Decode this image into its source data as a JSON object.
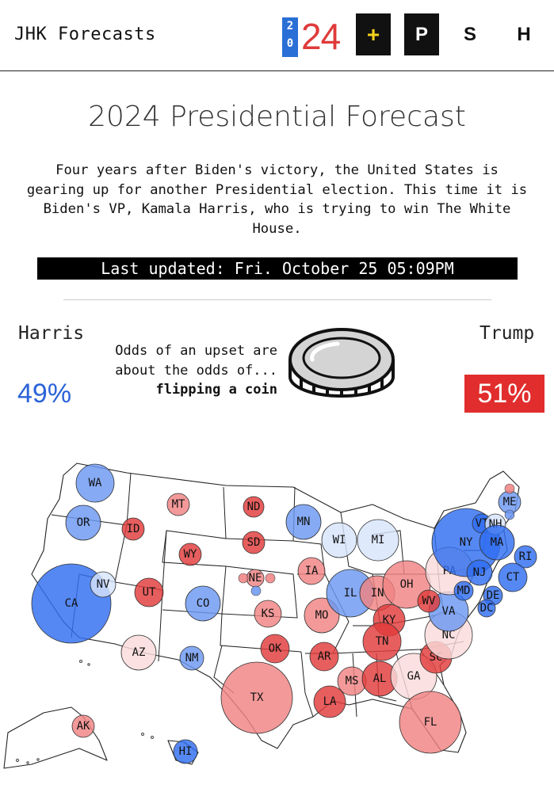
{
  "header": {
    "brand": "JHK Forecasts",
    "logo_small_digits": [
      "2",
      "0"
    ],
    "logo_big": "24",
    "nav": [
      {
        "label": "+",
        "style": "dark-plus"
      },
      {
        "label": "P",
        "style": "dark"
      },
      {
        "label": "S",
        "style": "plain"
      },
      {
        "label": "H",
        "style": "plain"
      }
    ]
  },
  "title": "2024 Presidential Forecast",
  "intro_lines": [
    "Four years after Biden's victory, the United States is",
    "gearing up for another Presidential election. This time it is",
    "Biden's VP, Kamala Harris, who is trying to win The White",
    "House."
  ],
  "last_updated": "Last updated: Fri. October 25 05:09PM",
  "candidates": {
    "harris": {
      "name": "Harris",
      "pct": "49%",
      "color": "#2b63d8"
    },
    "trump": {
      "name": "Trump",
      "pct": "51%",
      "color": "#e12d2d"
    }
  },
  "odds": {
    "line1": "Odds of an upset are",
    "line2": "about the odds of...",
    "line3": "flipping a coin",
    "icon": "coin-icon"
  },
  "map": {
    "colors": {
      "solid_blue": "#2f6ef0",
      "likely_blue": "#6b97f2",
      "lean_blue": "#d7e4fb",
      "solid_red": "#e23a3a",
      "likely_red": "#f08282",
      "lean_red": "#fadadb"
    },
    "states": [
      {
        "code": "WA",
        "party": "likely_blue"
      },
      {
        "code": "OR",
        "party": "likely_blue"
      },
      {
        "code": "CA",
        "party": "solid_blue"
      },
      {
        "code": "NV",
        "party": "lean_blue"
      },
      {
        "code": "ID",
        "party": "solid_red"
      },
      {
        "code": "MT",
        "party": "likely_red"
      },
      {
        "code": "WY",
        "party": "solid_red"
      },
      {
        "code": "UT",
        "party": "solid_red"
      },
      {
        "code": "AZ",
        "party": "lean_red"
      },
      {
        "code": "CO",
        "party": "likely_blue"
      },
      {
        "code": "NM",
        "party": "likely_blue"
      },
      {
        "code": "ND",
        "party": "solid_red"
      },
      {
        "code": "SD",
        "party": "solid_red"
      },
      {
        "code": "NE",
        "party": "likely_red"
      },
      {
        "code": "KS",
        "party": "likely_red"
      },
      {
        "code": "OK",
        "party": "solid_red"
      },
      {
        "code": "TX",
        "party": "likely_red"
      },
      {
        "code": "MN",
        "party": "likely_blue"
      },
      {
        "code": "IA",
        "party": "likely_red"
      },
      {
        "code": "MO",
        "party": "likely_red"
      },
      {
        "code": "AR",
        "party": "solid_red"
      },
      {
        "code": "LA",
        "party": "solid_red"
      },
      {
        "code": "WI",
        "party": "lean_blue"
      },
      {
        "code": "MI",
        "party": "lean_blue"
      },
      {
        "code": "IL",
        "party": "likely_blue"
      },
      {
        "code": "IN",
        "party": "likely_red"
      },
      {
        "code": "OH",
        "party": "likely_red"
      },
      {
        "code": "KY",
        "party": "solid_red"
      },
      {
        "code": "TN",
        "party": "solid_red"
      },
      {
        "code": "MS",
        "party": "likely_red"
      },
      {
        "code": "AL",
        "party": "solid_red"
      },
      {
        "code": "GA",
        "party": "lean_red"
      },
      {
        "code": "FL",
        "party": "likely_red"
      },
      {
        "code": "SC",
        "party": "solid_red"
      },
      {
        "code": "NC",
        "party": "lean_red"
      },
      {
        "code": "VA",
        "party": "likely_blue"
      },
      {
        "code": "WV",
        "party": "solid_red"
      },
      {
        "code": "PA",
        "party": "lean_red"
      },
      {
        "code": "NY",
        "party": "solid_blue"
      },
      {
        "code": "VT",
        "party": "solid_blue"
      },
      {
        "code": "NH",
        "party": "lean_blue"
      },
      {
        "code": "MA",
        "party": "solid_blue"
      },
      {
        "code": "RI",
        "party": "solid_blue"
      },
      {
        "code": "CT",
        "party": "solid_blue"
      },
      {
        "code": "NJ",
        "party": "solid_blue"
      },
      {
        "code": "DE",
        "party": "solid_blue"
      },
      {
        "code": "MD",
        "party": "solid_blue"
      },
      {
        "code": "DC",
        "party": "solid_blue"
      },
      {
        "code": "ME",
        "party": "likely_blue"
      },
      {
        "code": "AK",
        "party": "likely_red"
      },
      {
        "code": "HI",
        "party": "solid_blue"
      }
    ]
  }
}
